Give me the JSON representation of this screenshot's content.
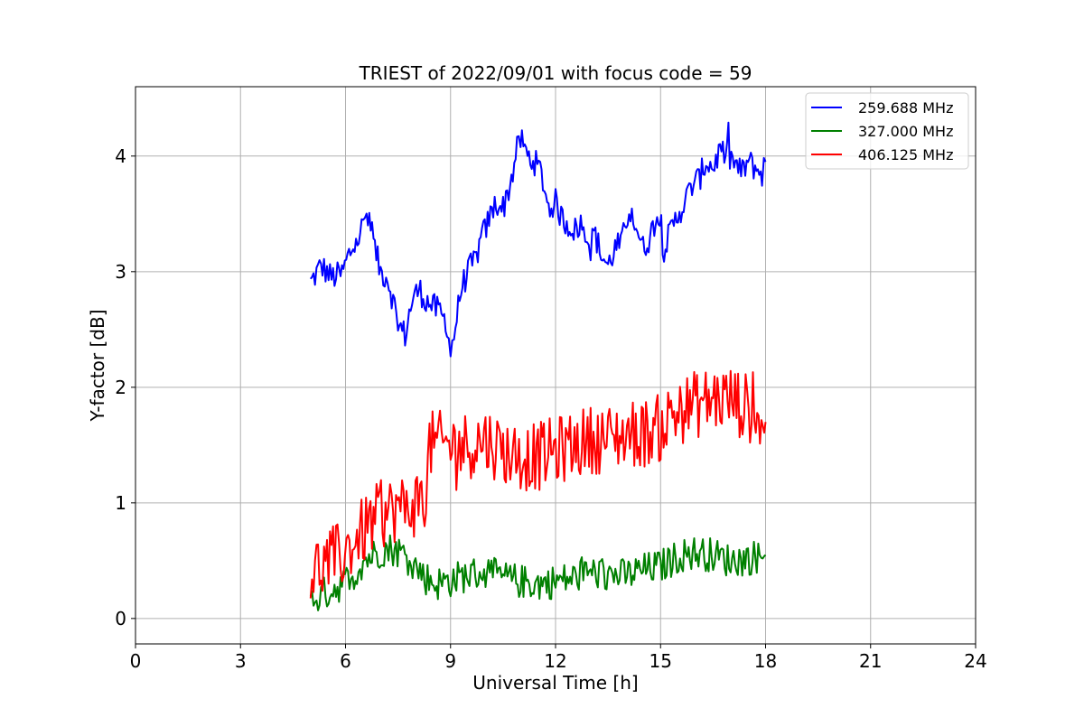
{
  "chart_data": {
    "type": "line",
    "title": "TRIEST of 2022/09/01 with focus code = 59",
    "xlabel": "Universal Time [h]",
    "ylabel": "Y-factor [dB]",
    "xlim": [
      0,
      24
    ],
    "ylim": [
      -0.22,
      4.6
    ],
    "xticks": [
      0,
      3,
      6,
      9,
      12,
      15,
      18,
      21,
      24
    ],
    "yticks": [
      0,
      1,
      2,
      3,
      4
    ],
    "grid": true,
    "legend_position": "top-right",
    "series": [
      {
        "name": "259.688 MHz",
        "color": "#0000ff",
        "noise": 0.12,
        "x": [
          5.0,
          5.3,
          5.6,
          5.9,
          6.1,
          6.3,
          6.5,
          6.6,
          6.8,
          7.0,
          7.2,
          7.4,
          7.5,
          7.7,
          7.9,
          8.1,
          8.3,
          8.5,
          8.7,
          8.9,
          9.0,
          9.1,
          9.3,
          9.5,
          9.7,
          9.9,
          10.1,
          10.3,
          10.5,
          10.7,
          10.9,
          11.0,
          11.2,
          11.4,
          11.6,
          11.8,
          12.0,
          12.2,
          12.4,
          12.6,
          12.8,
          12.9,
          13.0,
          13.1,
          13.3,
          13.5,
          13.7,
          13.9,
          14.1,
          14.3,
          14.5,
          14.7,
          14.9,
          15.1,
          15.3,
          15.5,
          15.7,
          15.9,
          16.1,
          16.3,
          16.5,
          16.7,
          16.9,
          17.1,
          17.3,
          17.5,
          17.7,
          17.9,
          18.0
        ],
        "y": [
          2.9,
          3.05,
          2.95,
          2.98,
          3.15,
          3.25,
          3.4,
          3.5,
          3.25,
          3.0,
          2.95,
          2.7,
          2.55,
          2.45,
          2.75,
          2.85,
          2.75,
          2.7,
          2.65,
          2.55,
          2.3,
          2.45,
          2.85,
          3.0,
          3.1,
          3.3,
          3.45,
          3.6,
          3.55,
          3.75,
          4.05,
          4.15,
          4.0,
          3.95,
          3.85,
          3.55,
          3.6,
          3.45,
          3.4,
          3.35,
          3.45,
          3.3,
          3.2,
          3.35,
          3.15,
          3.05,
          3.2,
          3.25,
          3.55,
          3.4,
          3.2,
          3.3,
          3.5,
          3.2,
          3.35,
          3.5,
          3.6,
          3.75,
          3.8,
          3.95,
          3.9,
          4.05,
          4.0,
          3.95,
          3.85,
          3.95,
          3.9,
          3.85,
          3.95
        ]
      },
      {
        "name": "327.000 MHz",
        "color": "#008000",
        "noise": 0.15,
        "x": [
          5.0,
          5.3,
          5.6,
          5.9,
          6.2,
          6.5,
          6.8,
          7.1,
          7.4,
          7.7,
          8.0,
          8.3,
          8.6,
          9.0,
          9.5,
          10.0,
          10.5,
          11.0,
          11.5,
          12.0,
          12.5,
          13.0,
          13.5,
          14.0,
          14.5,
          15.0,
          15.3,
          15.6,
          16.0,
          16.5,
          17.0,
          17.5,
          18.0
        ],
        "y": [
          0.15,
          0.2,
          0.25,
          0.3,
          0.35,
          0.5,
          0.55,
          0.6,
          0.6,
          0.55,
          0.45,
          0.35,
          0.3,
          0.33,
          0.38,
          0.4,
          0.35,
          0.32,
          0.3,
          0.32,
          0.35,
          0.4,
          0.38,
          0.37,
          0.42,
          0.45,
          0.5,
          0.55,
          0.57,
          0.55,
          0.5,
          0.52,
          0.55
        ]
      },
      {
        "name": "406.125 MHz",
        "color": "#ff0000",
        "noise": 0.3,
        "x": [
          5.0,
          5.3,
          5.6,
          5.9,
          6.2,
          6.5,
          6.8,
          7.1,
          7.4,
          7.7,
          8.0,
          8.3,
          8.4,
          8.7,
          9.0,
          9.5,
          10.0,
          10.5,
          11.0,
          11.5,
          12.0,
          12.5,
          13.0,
          13.5,
          14.0,
          14.5,
          15.0,
          15.3,
          15.6,
          16.0,
          16.5,
          17.0,
          17.3,
          17.6,
          18.0
        ],
        "y": [
          0.4,
          0.45,
          0.5,
          0.55,
          0.65,
          0.75,
          0.85,
          0.9,
          0.95,
          0.95,
          1.0,
          1.05,
          1.5,
          1.5,
          1.5,
          1.5,
          1.55,
          1.45,
          1.4,
          1.4,
          1.45,
          1.5,
          1.55,
          1.55,
          1.6,
          1.6,
          1.65,
          1.75,
          1.8,
          1.85,
          1.9,
          1.9,
          1.85,
          1.8,
          1.7
        ]
      }
    ]
  }
}
